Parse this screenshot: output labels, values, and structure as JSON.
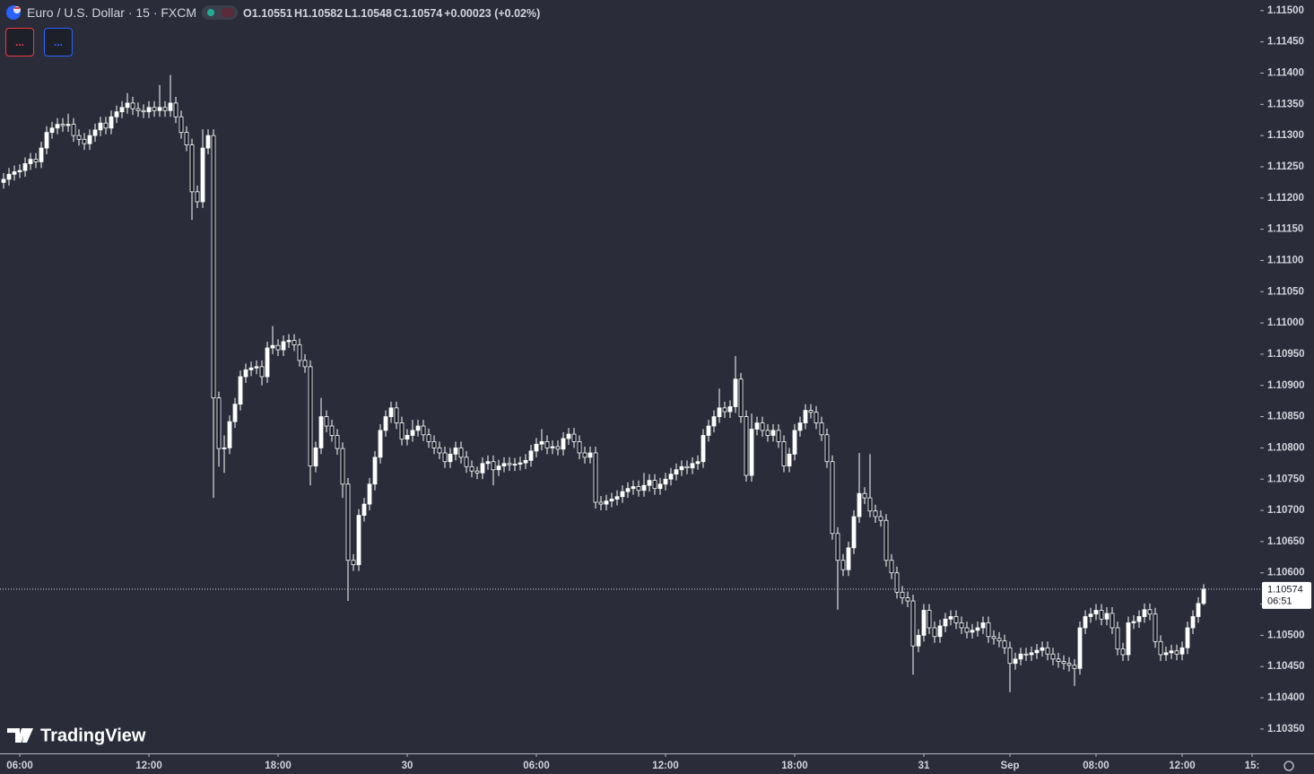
{
  "chart_data": {
    "type": "candlestick",
    "title": "Euro / U.S. Dollar · 15 · FXCM",
    "ohlc_text": [
      "O1.10551",
      "H1.10582",
      "L1.10548",
      "C1.10574",
      "+0.00023 (+0.02%)"
    ],
    "buttons": [
      "...",
      "..."
    ],
    "watermark": "TradingView",
    "last_price_label": "1.10574",
    "countdown": "06:51",
    "up_color": "#ffffff",
    "down_color": "#131722",
    "wick_color": "#ffffff",
    "xlim": [
      -0.67,
      233.5
    ],
    "xticks": [
      {
        "value": 3,
        "label": "06:00"
      },
      {
        "value": 27,
        "label": "12:00"
      },
      {
        "value": 51,
        "label": "18:00"
      },
      {
        "value": 75,
        "label": "30"
      },
      {
        "value": 99,
        "label": "06:00"
      },
      {
        "value": 123,
        "label": "12:00"
      },
      {
        "value": 147,
        "label": "18:00"
      },
      {
        "value": 171,
        "label": "31"
      },
      {
        "value": 187,
        "label": "Sep"
      },
      {
        "value": 203,
        "label": "08:00"
      },
      {
        "value": 219,
        "label": "12:00"
      },
      {
        "value": 232,
        "label": "15:"
      }
    ],
    "ylim": [
      1.10311,
      1.11517
    ],
    "yticks": [
      {
        "value": 1.1035,
        "label": "1.10350"
      },
      {
        "value": 1.104,
        "label": "1.10400"
      },
      {
        "value": 1.1045,
        "label": "1.10450"
      },
      {
        "value": 1.105,
        "label": "1.10500"
      },
      {
        "value": 1.1055,
        "label": "1.10550"
      },
      {
        "value": 1.106,
        "label": "1.10600"
      },
      {
        "value": 1.1065,
        "label": "1.10650"
      },
      {
        "value": 1.107,
        "label": "1.10700"
      },
      {
        "value": 1.1075,
        "label": "1.10750"
      },
      {
        "value": 1.108,
        "label": "1.10800"
      },
      {
        "value": 1.1085,
        "label": "1.10850"
      },
      {
        "value": 1.109,
        "label": "1.10900"
      },
      {
        "value": 1.1095,
        "label": "1.10950"
      },
      {
        "value": 1.11,
        "label": "1.11000"
      },
      {
        "value": 1.1105,
        "label": "1.11050"
      },
      {
        "value": 1.111,
        "label": "1.11100"
      },
      {
        "value": 1.1115,
        "label": "1.11150"
      },
      {
        "value": 1.112,
        "label": "1.11200"
      },
      {
        "value": 1.1125,
        "label": "1.11250"
      },
      {
        "value": 1.113,
        "label": "1.11300"
      },
      {
        "value": 1.1135,
        "label": "1.11350"
      },
      {
        "value": 1.114,
        "label": "1.11400"
      },
      {
        "value": 1.1145,
        "label": "1.11450"
      },
      {
        "value": 1.115,
        "label": "1.11500"
      }
    ],
    "open": [
      1.11225,
      1.1123,
      1.11238,
      1.11242,
      1.11244,
      1.11255,
      1.11262,
      1.11258,
      1.1128,
      1.11305,
      1.11312,
      1.11318,
      1.11316,
      1.11318,
      1.113,
      1.11294,
      1.11287,
      1.113,
      1.11309,
      1.1132,
      1.11312,
      1.1133,
      1.11338,
      1.11345,
      1.11352,
      1.11343,
      1.1134,
      1.11338,
      1.11345,
      1.1134,
      1.11345,
      1.1134,
      1.11352,
      1.1133,
      1.11305,
      1.11285,
      1.1121,
      1.11194,
      1.1128,
      1.113,
      1.1088,
      1.10799,
      1.108,
      1.10842,
      1.1087,
      1.10914,
      1.10925,
      1.10928,
      1.1093,
      1.10914,
      1.1096,
      1.10964,
      1.10957,
      1.1097,
      1.10972,
      1.10965,
      1.1094,
      1.1093,
      1.10771,
      1.108,
      1.1085,
      1.10835,
      1.1082,
      1.10799,
      1.10742,
      1.1062,
      1.10613,
      1.10692,
      1.1071,
      1.10742,
      1.10785,
      1.10828,
      1.1085,
      1.10864,
      1.1084,
      1.10814,
      1.1082,
      1.10828,
      1.10835,
      1.10821,
      1.1081,
      1.108,
      1.10792,
      1.10778,
      1.1079,
      1.108,
      1.10785,
      1.1077,
      1.10763,
      1.1076,
      1.10775,
      1.10778,
      1.10765,
      1.10771,
      1.10775,
      1.10773,
      1.10774,
      1.10776,
      1.1078,
      1.10795,
      1.10806,
      1.1081,
      1.108,
      1.10802,
      1.10798,
      1.10815,
      1.10822,
      1.1081,
      1.10792,
      1.10785,
      1.10792,
      1.10713,
      1.1071,
      1.10715,
      1.10718,
      1.10722,
      1.1073,
      1.10735,
      1.10738,
      1.10732,
      1.1074,
      1.10748,
      1.10735,
      1.10742,
      1.1075,
      1.10758,
      1.10765,
      1.1077,
      1.10768,
      1.10775,
      1.10778,
      1.1082,
      1.10835,
      1.1085,
      1.10864,
      1.10858,
      1.10866,
      1.1091,
      1.1085,
      1.10756,
      1.1083,
      1.1084,
      1.10828,
      1.1082,
      1.10828,
      1.1081,
      1.10771,
      1.1079,
      1.10828,
      1.1084,
      1.1086,
      1.10857,
      1.1084,
      1.10821,
      1.10778,
      1.10663,
      1.1062,
      1.10605,
      1.1064,
      1.1069,
      1.10727,
      1.1072,
      1.10699,
      1.1069,
      1.10684,
      1.1062,
      1.106,
      1.10569,
      1.1056,
      1.10555,
      1.10483,
      1.105,
      1.1054,
      1.10512,
      1.10498,
      1.10515,
      1.10526,
      1.1053,
      1.1052,
      1.10512,
      1.10505,
      1.10508,
      1.10512,
      1.1052,
      1.10498,
      1.10495,
      1.10491,
      1.1048,
      1.10455,
      1.10462,
      1.1047,
      1.10469,
      1.10472,
      1.10476,
      1.1048,
      1.1047,
      1.10462,
      1.10458,
      1.10455,
      1.10452,
      1.10447,
      1.10512,
      1.1053,
      1.10534,
      1.1054,
      1.10526,
      1.10535,
      1.10512,
      1.10478,
      1.10469,
      1.1052,
      1.10522,
      1.1053,
      1.10541,
      1.10534,
      1.1049,
      1.10469,
      1.10472,
      1.10475,
      1.1047,
      1.1048,
      1.10512,
      1.1053,
      1.10551
    ],
    "high": [
      1.1124,
      1.11248,
      1.11252,
      1.11254,
      1.11265,
      1.11272,
      1.11272,
      1.1129,
      1.11315,
      1.11322,
      1.11328,
      1.11328,
      1.11335,
      1.11328,
      1.1131,
      1.11304,
      1.1131,
      1.11319,
      1.1133,
      1.1133,
      1.1134,
      1.11348,
      1.11355,
      1.11368,
      1.11362,
      1.11353,
      1.1135,
      1.11355,
      1.11355,
      1.11381,
      1.11355,
      1.11397,
      1.11362,
      1.1134,
      1.11315,
      1.11295,
      1.1122,
      1.1131,
      1.1131,
      1.1131,
      1.1089,
      1.1082,
      1.10852,
      1.1088,
      1.10924,
      1.10935,
      1.10938,
      1.1094,
      1.1094,
      1.1097,
      1.10995,
      1.10974,
      1.1098,
      1.10982,
      1.10982,
      1.10975,
      1.1095,
      1.1094,
      1.1081,
      1.1088,
      1.1086,
      1.10845,
      1.1083,
      1.10809,
      1.10752,
      1.1063,
      1.10702,
      1.1072,
      1.10752,
      1.10795,
      1.10838,
      1.1086,
      1.10874,
      1.10874,
      1.1085,
      1.1083,
      1.10845,
      1.10845,
      1.10845,
      1.10831,
      1.1082,
      1.1081,
      1.10802,
      1.108,
      1.1081,
      1.1081,
      1.10795,
      1.1078,
      1.1077,
      1.10785,
      1.10788,
      1.10788,
      1.10781,
      1.10785,
      1.10785,
      1.10784,
      1.10786,
      1.1079,
      1.10805,
      1.10816,
      1.1083,
      1.1082,
      1.10812,
      1.10812,
      1.10825,
      1.10832,
      1.10832,
      1.1082,
      1.10802,
      1.10802,
      1.10802,
      1.10723,
      1.10725,
      1.10728,
      1.10732,
      1.1074,
      1.10745,
      1.10748,
      1.10748,
      1.1076,
      1.10758,
      1.10758,
      1.10752,
      1.1076,
      1.10768,
      1.10775,
      1.1078,
      1.1078,
      1.10785,
      1.10788,
      1.1083,
      1.10845,
      1.1086,
      1.10895,
      1.10874,
      1.10876,
      1.10947,
      1.1092,
      1.1086,
      1.10855,
      1.1085,
      1.1085,
      1.10838,
      1.10838,
      1.10838,
      1.1082,
      1.108,
      1.10838,
      1.1085,
      1.1087,
      1.1087,
      1.10867,
      1.1085,
      1.10831,
      1.10788,
      1.10673,
      1.1063,
      1.1065,
      1.107,
      1.10792,
      1.10737,
      1.1079,
      1.10709,
      1.107,
      1.10694,
      1.1063,
      1.1061,
      1.10579,
      1.1057,
      1.10565,
      1.1051,
      1.1055,
      1.1055,
      1.10522,
      1.10525,
      1.10536,
      1.1054,
      1.1054,
      1.1053,
      1.10522,
      1.10518,
      1.10522,
      1.1053,
      1.1053,
      1.10508,
      1.10505,
      1.10501,
      1.1049,
      1.10472,
      1.1048,
      1.1048,
      1.10482,
      1.10486,
      1.1049,
      1.1049,
      1.1048,
      1.10472,
      1.10468,
      1.10465,
      1.10462,
      1.10522,
      1.1054,
      1.10544,
      1.1055,
      1.1055,
      1.10545,
      1.10545,
      1.10522,
      1.10488,
      1.1053,
      1.10532,
      1.1054,
      1.10551,
      1.10551,
      1.10544,
      1.105,
      1.10482,
      1.10485,
      1.10485,
      1.1049,
      1.10522,
      1.1054,
      1.10561,
      1.10582
    ],
    "low": [
      1.11215,
      1.1122,
      1.11228,
      1.11232,
      1.11234,
      1.11245,
      1.11248,
      1.11248,
      1.1127,
      1.11295,
      1.11302,
      1.11306,
      1.11306,
      1.1129,
      1.11284,
      1.11277,
      1.11277,
      1.1129,
      1.11299,
      1.11302,
      1.11302,
      1.1132,
      1.11328,
      1.11335,
      1.11333,
      1.1133,
      1.11328,
      1.11328,
      1.1133,
      1.1133,
      1.1133,
      1.1133,
      1.1132,
      1.11295,
      1.11275,
      1.11165,
      1.11184,
      1.11184,
      1.1127,
      1.1072,
      1.1077,
      1.1076,
      1.1079,
      1.10832,
      1.1086,
      1.10904,
      1.10915,
      1.10918,
      1.109,
      1.10904,
      1.1095,
      1.10947,
      1.10947,
      1.1096,
      1.10955,
      1.1093,
      1.1092,
      1.1074,
      1.10761,
      1.1079,
      1.10825,
      1.1081,
      1.10789,
      1.1072,
      1.10555,
      1.10603,
      1.10603,
      1.10682,
      1.107,
      1.10732,
      1.10775,
      1.10818,
      1.1084,
      1.1083,
      1.10804,
      1.10804,
      1.1081,
      1.10818,
      1.10811,
      1.108,
      1.1079,
      1.10782,
      1.10768,
      1.10768,
      1.1078,
      1.10775,
      1.1076,
      1.10753,
      1.1075,
      1.1075,
      1.10765,
      1.1074,
      1.10755,
      1.10761,
      1.10763,
      1.10763,
      1.10764,
      1.10766,
      1.1077,
      1.10785,
      1.10796,
      1.1079,
      1.1079,
      1.10788,
      1.10788,
      1.10805,
      1.108,
      1.10782,
      1.10775,
      1.10775,
      1.10703,
      1.107,
      1.107,
      1.10705,
      1.10708,
      1.10712,
      1.1072,
      1.10725,
      1.10722,
      1.10722,
      1.1073,
      1.10725,
      1.10725,
      1.10732,
      1.1074,
      1.10748,
      1.10755,
      1.10758,
      1.10758,
      1.10765,
      1.10768,
      1.1081,
      1.10825,
      1.1084,
      1.10848,
      1.10848,
      1.10856,
      1.1084,
      1.10746,
      1.10746,
      1.1082,
      1.10818,
      1.1081,
      1.1081,
      1.108,
      1.10761,
      1.10761,
      1.1078,
      1.10818,
      1.1083,
      1.10847,
      1.1083,
      1.10811,
      1.10768,
      1.10653,
      1.10541,
      1.10595,
      1.10595,
      1.1063,
      1.1068,
      1.1071,
      1.10689,
      1.1068,
      1.10674,
      1.1061,
      1.1059,
      1.10559,
      1.1055,
      1.10545,
      1.10437,
      1.10473,
      1.1049,
      1.10502,
      1.10488,
      1.10488,
      1.10505,
      1.10516,
      1.1051,
      1.10502,
      1.10495,
      1.10495,
      1.10498,
      1.10502,
      1.10488,
      1.10485,
      1.10481,
      1.1047,
      1.10409,
      1.10445,
      1.10452,
      1.10459,
      1.10459,
      1.10462,
      1.10466,
      1.1046,
      1.10452,
      1.10448,
      1.10445,
      1.10442,
      1.10419,
      1.10437,
      1.10502,
      1.1052,
      1.10524,
      1.10516,
      1.10516,
      1.10502,
      1.10468,
      1.10459,
      1.10459,
      1.1051,
      1.10512,
      1.1052,
      1.10524,
      1.1048,
      1.10459,
      1.10459,
      1.10462,
      1.1046,
      1.1046,
      1.1047,
      1.10502,
      1.1052,
      1.10548
    ],
    "close": [
      1.1123,
      1.11238,
      1.11242,
      1.11244,
      1.11255,
      1.11262,
      1.11258,
      1.1128,
      1.11305,
      1.11312,
      1.11318,
      1.11316,
      1.11318,
      1.113,
      1.11294,
      1.11287,
      1.113,
      1.11309,
      1.1132,
      1.11312,
      1.1133,
      1.11338,
      1.11345,
      1.11352,
      1.11343,
      1.1134,
      1.11338,
      1.11345,
      1.1134,
      1.11345,
      1.1134,
      1.11352,
      1.1133,
      1.11305,
      1.11285,
      1.1121,
      1.11194,
      1.1128,
      1.113,
      1.1088,
      1.10799,
      1.108,
      1.10842,
      1.1087,
      1.10914,
      1.10925,
      1.10928,
      1.1093,
      1.10914,
      1.1096,
      1.10964,
      1.10957,
      1.1097,
      1.10972,
      1.10965,
      1.1094,
      1.1093,
      1.10771,
      1.108,
      1.1085,
      1.10835,
      1.1082,
      1.10799,
      1.10742,
      1.1062,
      1.10613,
      1.10692,
      1.1071,
      1.10742,
      1.10785,
      1.10828,
      1.1085,
      1.10864,
      1.1084,
      1.10814,
      1.1082,
      1.10828,
      1.10835,
      1.10821,
      1.1081,
      1.108,
      1.10792,
      1.10778,
      1.1079,
      1.108,
      1.10785,
      1.1077,
      1.10763,
      1.1076,
      1.10775,
      1.10778,
      1.10765,
      1.10771,
      1.10775,
      1.10773,
      1.10774,
      1.10776,
      1.1078,
      1.10795,
      1.10806,
      1.1081,
      1.108,
      1.10802,
      1.10798,
      1.10815,
      1.10822,
      1.1081,
      1.10792,
      1.10785,
      1.10792,
      1.10713,
      1.1071,
      1.10715,
      1.10718,
      1.10722,
      1.1073,
      1.10735,
      1.10738,
      1.10732,
      1.1074,
      1.10748,
      1.10735,
      1.10742,
      1.1075,
      1.10758,
      1.10765,
      1.1077,
      1.10768,
      1.10775,
      1.10778,
      1.1082,
      1.10835,
      1.1085,
      1.10864,
      1.10858,
      1.10866,
      1.1091,
      1.1085,
      1.10756,
      1.1083,
      1.1084,
      1.10828,
      1.1082,
      1.10828,
      1.1081,
      1.10771,
      1.1079,
      1.10828,
      1.1084,
      1.1086,
      1.10857,
      1.1084,
      1.10821,
      1.10778,
      1.10663,
      1.1062,
      1.10605,
      1.1064,
      1.1069,
      1.10727,
      1.1072,
      1.10699,
      1.1069,
      1.10684,
      1.1062,
      1.106,
      1.10569,
      1.1056,
      1.10555,
      1.10483,
      1.105,
      1.1054,
      1.10512,
      1.10498,
      1.10515,
      1.10526,
      1.1053,
      1.1052,
      1.10512,
      1.10505,
      1.10508,
      1.10512,
      1.1052,
      1.10498,
      1.10495,
      1.10491,
      1.1048,
      1.10455,
      1.10462,
      1.1047,
      1.10469,
      1.10472,
      1.10476,
      1.1048,
      1.1047,
      1.10462,
      1.10458,
      1.10455,
      1.10452,
      1.10447,
      1.10512,
      1.1053,
      1.10534,
      1.1054,
      1.10526,
      1.10535,
      1.10512,
      1.10478,
      1.10469,
      1.1052,
      1.10522,
      1.1053,
      1.10541,
      1.10534,
      1.1049,
      1.10469,
      1.10472,
      1.10475,
      1.1047,
      1.1048,
      1.10512,
      1.1053,
      1.10551,
      1.10574
    ]
  }
}
